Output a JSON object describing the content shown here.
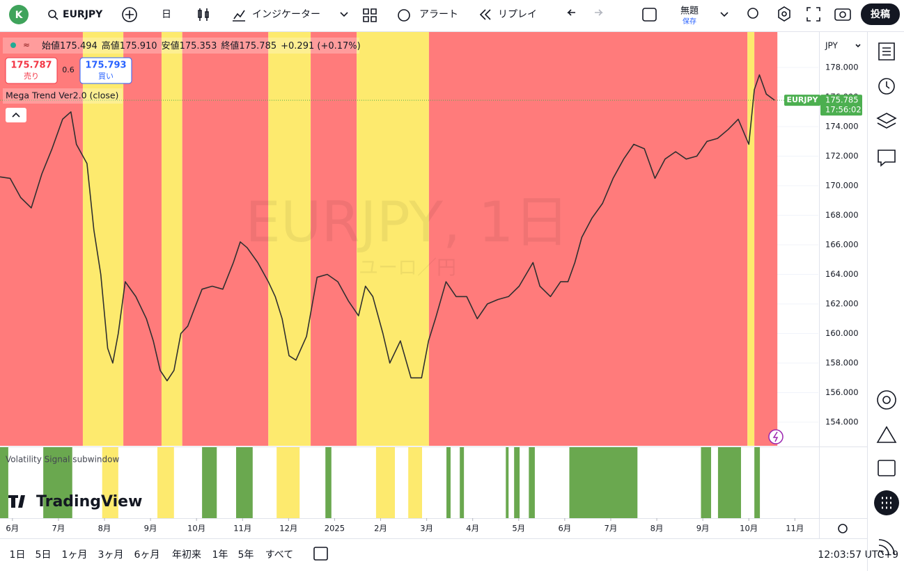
{
  "toolbar": {
    "avatar": "K",
    "symbol": "EURJPY",
    "interval": "日",
    "indicators": "インジケーター",
    "alert": "アラート",
    "replay": "リプレイ",
    "layout_name": "無題",
    "save": "保存",
    "publish": "投稿"
  },
  "legend": {
    "open_label": "始値",
    "open": "175.494",
    "high_label": "高値",
    "high": "175.910",
    "low_label": "安値",
    "low": "175.353",
    "close_label": "終値",
    "close": "175.785",
    "change": "+0.291 (+0.17%)",
    "sell_price": "175.787",
    "sell": "売り",
    "spread": "0.6",
    "buy_price": "175.793",
    "buy": "買い",
    "indicator": "Mega Trend Ver2.0 (close)",
    "subwindow": "Volatility Signal subwindow"
  },
  "watermark": {
    "title": "EURJPY, 1日",
    "subtitle": "ユーロ／円"
  },
  "logo": "TradingView",
  "price_axis": {
    "currency": "JPY",
    "last_symbol": "EURJPY",
    "last_price": "175.785",
    "countdown": "17:56:02"
  },
  "bottom_bar": {
    "ranges": [
      "1日",
      "5日",
      "1ヶ月",
      "3ヶ月",
      "6ヶ月",
      "年初来",
      "1年",
      "5年",
      "すべて"
    ],
    "clock": "12:03:57 UTC+9"
  },
  "chart_data": {
    "type": "line",
    "color": "#2f2f2f",
    "x": [
      -0.27,
      -0.05,
      0.18,
      0.41,
      0.64,
      0.86,
      1.09,
      1.27,
      1.39,
      1.62,
      1.77,
      1.92,
      2.07,
      2.18,
      2.3,
      2.45,
      2.68,
      2.91,
      3.06,
      3.21,
      3.36,
      3.51,
      3.66,
      3.81,
      3.97,
      4.12,
      4.34,
      4.57,
      4.8,
      4.95,
      5.1,
      5.33,
      5.56,
      5.71,
      5.86,
      6.01,
      6.16,
      6.39,
      6.62,
      6.84,
      7.07,
      7.3,
      7.52,
      7.67,
      7.83,
      8.05,
      8.2,
      8.43,
      8.66,
      8.89,
      9.04,
      9.19,
      9.42,
      9.64,
      9.87,
      10.1,
      10.32,
      10.55,
      10.78,
      11.01,
      11.31,
      11.46,
      11.69,
      11.91,
      12.07,
      12.22,
      12.37,
      12.59,
      12.82,
      13.05,
      13.28,
      13.5,
      13.73,
      13.96,
      14.18,
      14.41,
      14.64,
      14.87,
      15.09,
      15.32,
      15.55,
      15.77,
      16.0,
      16.12,
      16.23,
      16.38,
      16.56
    ],
    "values": [
      170.6,
      170.5,
      169.2,
      168.5,
      170.8,
      172.5,
      174.5,
      175.0,
      172.8,
      171.5,
      167,
      164,
      159,
      158,
      160,
      163.5,
      162.5,
      161,
      159.5,
      157.5,
      156.8,
      157.5,
      160,
      160.5,
      161.8,
      163,
      163.2,
      163,
      164.8,
      166.2,
      165.8,
      164.8,
      163.5,
      162.5,
      161,
      158.5,
      158.2,
      159.8,
      163.8,
      164,
      163.5,
      162.2,
      161.2,
      163.2,
      162.5,
      160,
      158,
      159.5,
      157,
      157,
      159.5,
      161,
      163.5,
      162.5,
      162.5,
      161,
      162,
      162.3,
      162.5,
      163.2,
      164.8,
      163.2,
      162.5,
      163.5,
      163.5,
      164.8,
      166.5,
      167.8,
      168.8,
      170.5,
      171.8,
      172.8,
      172.5,
      170.5,
      171.8,
      172.3,
      171.8,
      172,
      173,
      173.2,
      173.8,
      174.5,
      172.8,
      176.5,
      177.5,
      176.2,
      175.785
    ],
    "xlim": [
      -0.27,
      17.51
    ],
    "ylim": [
      152.4,
      180.4
    ],
    "xticks": [
      {
        "value": 0,
        "label": "6月"
      },
      {
        "value": 1,
        "label": "7月"
      },
      {
        "value": 2,
        "label": "8月"
      },
      {
        "value": 3,
        "label": "9月"
      },
      {
        "value": 4,
        "label": "10月"
      },
      {
        "value": 5,
        "label": "11月"
      },
      {
        "value": 6,
        "label": "12月"
      },
      {
        "value": 7,
        "label": "2025"
      },
      {
        "value": 8,
        "label": "2月"
      },
      {
        "value": 9,
        "label": "3月"
      },
      {
        "value": 10,
        "label": "4月"
      },
      {
        "value": 11,
        "label": "5月"
      },
      {
        "value": 12,
        "label": "6月"
      },
      {
        "value": 13,
        "label": "7月"
      },
      {
        "value": 14,
        "label": "8月"
      },
      {
        "value": 15,
        "label": "9月"
      },
      {
        "value": 16,
        "label": "10月"
      },
      {
        "value": 17,
        "label": "11月"
      }
    ],
    "yticks": [
      {
        "value": 154,
        "label": "154.000"
      },
      {
        "value": 156,
        "label": "156.000"
      },
      {
        "value": 158,
        "label": "158.000"
      },
      {
        "value": 160,
        "label": "160.000"
      },
      {
        "value": 162,
        "label": "162.000"
      },
      {
        "value": 164,
        "label": "164.000"
      },
      {
        "value": 166,
        "label": "166.000"
      },
      {
        "value": 168,
        "label": "168.000"
      },
      {
        "value": 170,
        "label": "170.000"
      },
      {
        "value": 172,
        "label": "172.000"
      },
      {
        "value": 174,
        "label": "174.000"
      },
      {
        "value": 176,
        "label": "176.000"
      },
      {
        "value": 178,
        "label": "178.000"
      }
    ],
    "grid": true,
    "background_bands": [
      {
        "from": -0.27,
        "to": 1.53,
        "color": "#ff7b7b"
      },
      {
        "from": 1.53,
        "to": 2.41,
        "color": "#fdea6e"
      },
      {
        "from": 2.41,
        "to": 3.24,
        "color": "#ff7b7b"
      },
      {
        "from": 3.24,
        "to": 3.69,
        "color": "#fdea6e"
      },
      {
        "from": 3.69,
        "to": 5.56,
        "color": "#ff7b7b"
      },
      {
        "from": 5.56,
        "to": 6.48,
        "color": "#fdea6e"
      },
      {
        "from": 6.48,
        "to": 7.48,
        "color": "#ff7b7b"
      },
      {
        "from": 7.48,
        "to": 9.05,
        "color": "#fdea6e"
      },
      {
        "from": 9.05,
        "to": 15.97,
        "color": "#ff7b7b"
      },
      {
        "from": 15.97,
        "to": 16.12,
        "color": "#fdea6e"
      },
      {
        "from": 16.12,
        "to": 16.62,
        "color": "#ff7b7b"
      }
    ],
    "subwindow_segments": [
      {
        "from": -0.27,
        "to": -0.09,
        "color": "#6aa84f"
      },
      {
        "from": 0.67,
        "to": 1.3,
        "color": "#6aa84f"
      },
      {
        "from": 1.95,
        "to": 2.3,
        "color": "#fdea6e"
      },
      {
        "from": 3.15,
        "to": 3.51,
        "color": "#fdea6e"
      },
      {
        "from": 4.12,
        "to": 4.44,
        "color": "#6aa84f"
      },
      {
        "from": 4.86,
        "to": 5.22,
        "color": "#6aa84f"
      },
      {
        "from": 5.74,
        "to": 6.24,
        "color": "#fdea6e"
      },
      {
        "from": 6.8,
        "to": 6.93,
        "color": "#6aa84f"
      },
      {
        "from": 7.9,
        "to": 8.31,
        "color": "#fdea6e"
      },
      {
        "from": 8.6,
        "to": 8.9,
        "color": "#fdea6e"
      },
      {
        "from": 9.43,
        "to": 9.52,
        "color": "#6aa84f"
      },
      {
        "from": 9.72,
        "to": 9.81,
        "color": "#6aa84f"
      },
      {
        "from": 10.72,
        "to": 10.78,
        "color": "#6aa84f"
      },
      {
        "from": 10.9,
        "to": 11.02,
        "color": "#6aa84f"
      },
      {
        "from": 11.22,
        "to": 11.35,
        "color": "#6aa84f"
      },
      {
        "from": 12.1,
        "to": 13.58,
        "color": "#6aa84f"
      },
      {
        "from": 14.96,
        "to": 15.18,
        "color": "#6aa84f"
      },
      {
        "from": 15.33,
        "to": 15.83,
        "color": "#6aa84f"
      },
      {
        "from": 16.12,
        "to": 16.24,
        "color": "#6aa84f"
      }
    ]
  }
}
